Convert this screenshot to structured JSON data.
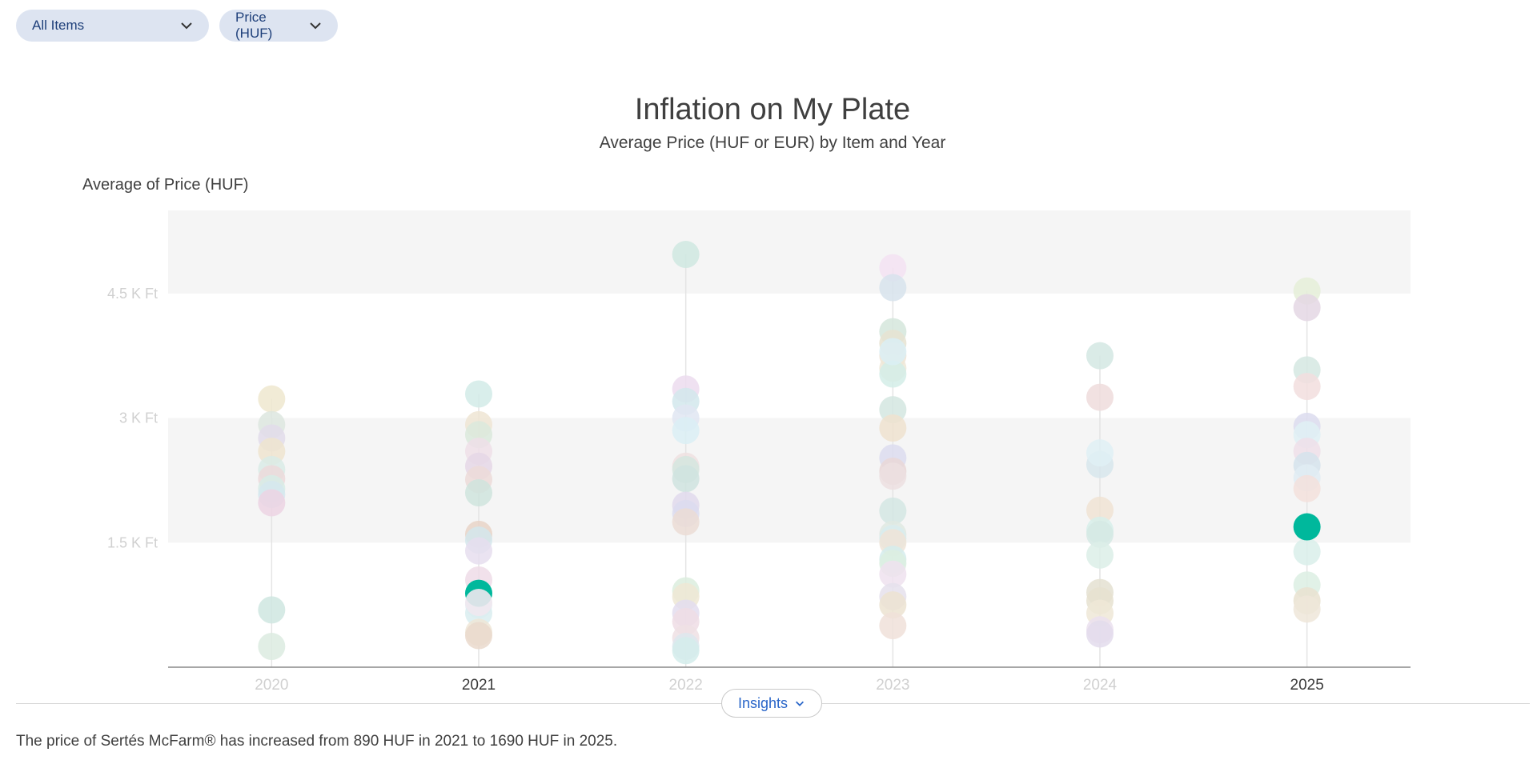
{
  "filters": {
    "items_label": "All Items",
    "metric_label": "Price (HUF)",
    "chevron_icon": "chevron-down-icon"
  },
  "insights": {
    "button_label": "Insights",
    "text": "The price of Sertés McFarm® has increased from 890 HUF in 2021 to 1690 HUF in 2025."
  },
  "chart_data": {
    "type": "scatter",
    "title": "Inflation on My Plate",
    "subtitle": "Average Price (HUF or EUR) by Item and Year",
    "ylabel": "Average of Price (HUF)",
    "xlabel": "",
    "ylim": [
      0,
      5500
    ],
    "yticks": [
      1500,
      3000,
      4500
    ],
    "ytick_labels": [
      "1.5 K Ft",
      "3 K Ft",
      "4.5 K Ft"
    ],
    "categories": [
      "2020",
      "2021",
      "2022",
      "2023",
      "2024",
      "2025"
    ],
    "highlighted_categories": [
      "2021",
      "2025"
    ],
    "grid": "alternating horizontal bands",
    "highlight": {
      "name": "Sertés McFarm®",
      "color": "#00b89c",
      "points": [
        {
          "x": "2021",
          "y": 890
        },
        {
          "x": "2025",
          "y": 1690
        }
      ]
    },
    "points": [
      {
        "x": "2020",
        "y": 3230,
        "c": "#efe8cf"
      },
      {
        "x": "2020",
        "y": 2920,
        "c": "#dde6df"
      },
      {
        "x": "2020",
        "y": 2760,
        "c": "#e2dcea"
      },
      {
        "x": "2020",
        "y": 2600,
        "c": "#efe4cf"
      },
      {
        "x": "2020",
        "y": 2380,
        "c": "#d9ebe6"
      },
      {
        "x": "2020",
        "y": 2270,
        "c": "#ecd9da"
      },
      {
        "x": "2020",
        "y": 2150,
        "c": "#d7ece6"
      },
      {
        "x": "2020",
        "y": 2080,
        "c": "#d5e8ee"
      },
      {
        "x": "2020",
        "y": 1980,
        "c": "#ecd3e3"
      },
      {
        "x": "2020",
        "y": 690,
        "c": "#cfe6e1"
      },
      {
        "x": "2020",
        "y": 250,
        "c": "#dcebe1"
      },
      {
        "x": "2021",
        "y": 3290,
        "c": "#d2ebe8"
      },
      {
        "x": "2021",
        "y": 2920,
        "c": "#efe5d3"
      },
      {
        "x": "2021",
        "y": 2800,
        "c": "#dae9dc"
      },
      {
        "x": "2021",
        "y": 2600,
        "c": "#efdfe7"
      },
      {
        "x": "2021",
        "y": 2420,
        "c": "#e5d7e6"
      },
      {
        "x": "2021",
        "y": 2260,
        "c": "#ecdbd8"
      },
      {
        "x": "2021",
        "y": 2100,
        "c": "#cfe4dd"
      },
      {
        "x": "2021",
        "y": 1600,
        "c": "#e8d3c7"
      },
      {
        "x": "2021",
        "y": 1530,
        "c": "#d4e6ec"
      },
      {
        "x": "2021",
        "y": 1400,
        "c": "#e6deef"
      },
      {
        "x": "2021",
        "y": 1050,
        "c": "#efdce7"
      },
      {
        "x": "2021",
        "y": 750,
        "c": "#e6eef5"
      },
      {
        "x": "2021",
        "y": 650,
        "c": "#d9edf0"
      },
      {
        "x": "2021",
        "y": 420,
        "c": "#efe6d7"
      },
      {
        "x": "2021",
        "y": 380,
        "c": "#ead9cd"
      },
      {
        "x": "2022",
        "y": 4970,
        "c": "#cfe7e0"
      },
      {
        "x": "2022",
        "y": 3350,
        "c": "#ecdcef"
      },
      {
        "x": "2022",
        "y": 3200,
        "c": "#d2e7ec"
      },
      {
        "x": "2022",
        "y": 3000,
        "c": "#e0e6f2"
      },
      {
        "x": "2022",
        "y": 2850,
        "c": "#dbeef5"
      },
      {
        "x": "2022",
        "y": 2420,
        "c": "#efe0e0"
      },
      {
        "x": "2022",
        "y": 2380,
        "c": "#d5e6df"
      },
      {
        "x": "2022",
        "y": 2270,
        "c": "#cfe3df"
      },
      {
        "x": "2022",
        "y": 1950,
        "c": "#e1d9ec"
      },
      {
        "x": "2022",
        "y": 1850,
        "c": "#dcdcef"
      },
      {
        "x": "2022",
        "y": 1750,
        "c": "#ebdcd5"
      },
      {
        "x": "2022",
        "y": 920,
        "c": "#dcedde"
      },
      {
        "x": "2022",
        "y": 850,
        "c": "#efe8d5"
      },
      {
        "x": "2022",
        "y": 650,
        "c": "#e3ddef"
      },
      {
        "x": "2022",
        "y": 550,
        "c": "#efdde5"
      },
      {
        "x": "2022",
        "y": 350,
        "c": "#efe1e4"
      },
      {
        "x": "2022",
        "y": 250,
        "c": "#dde8ed"
      },
      {
        "x": "2022",
        "y": 200,
        "c": "#d3eceb"
      },
      {
        "x": "2023",
        "y": 4810,
        "c": "#f3e2f2"
      },
      {
        "x": "2023",
        "y": 4570,
        "c": "#d7e3ec"
      },
      {
        "x": "2023",
        "y": 4040,
        "c": "#d5e6dc"
      },
      {
        "x": "2023",
        "y": 3900,
        "c": "#e6e3d1"
      },
      {
        "x": "2023",
        "y": 3750,
        "c": "#efe4d6"
      },
      {
        "x": "2023",
        "y": 3600,
        "c": "#efe8d7"
      },
      {
        "x": "2023",
        "y": 3530,
        "c": "#d4ede8"
      },
      {
        "x": "2023",
        "y": 3800,
        "c": "#dbeef5"
      },
      {
        "x": "2023",
        "y": 3100,
        "c": "#d3e6e1"
      },
      {
        "x": "2023",
        "y": 2880,
        "c": "#efe2cf"
      },
      {
        "x": "2023",
        "y": 2520,
        "c": "#dcdcef"
      },
      {
        "x": "2023",
        "y": 2360,
        "c": "#e9d7d7"
      },
      {
        "x": "2023",
        "y": 2300,
        "c": "#ecdfe0"
      },
      {
        "x": "2023",
        "y": 1880,
        "c": "#d3e6e3"
      },
      {
        "x": "2023",
        "y": 1600,
        "c": "#dfe9e2"
      },
      {
        "x": "2023",
        "y": 1550,
        "c": "#d8ecee"
      },
      {
        "x": "2023",
        "y": 1500,
        "c": "#efe4d7"
      },
      {
        "x": "2023",
        "y": 1300,
        "c": "#d5ecec"
      },
      {
        "x": "2023",
        "y": 1250,
        "c": "#dceee0"
      },
      {
        "x": "2023",
        "y": 1120,
        "c": "#efe2ef"
      },
      {
        "x": "2023",
        "y": 850,
        "c": "#e5e0ec"
      },
      {
        "x": "2023",
        "y": 750,
        "c": "#ece3d1"
      },
      {
        "x": "2023",
        "y": 500,
        "c": "#f0e1d9"
      },
      {
        "x": "2024",
        "y": 3750,
        "c": "#d3e7e3"
      },
      {
        "x": "2024",
        "y": 3250,
        "c": "#efdcdc"
      },
      {
        "x": "2024",
        "y": 2440,
        "c": "#d7e6ec"
      },
      {
        "x": "2024",
        "y": 2580,
        "c": "#dff0f5"
      },
      {
        "x": "2024",
        "y": 1890,
        "c": "#f0e3d3"
      },
      {
        "x": "2024",
        "y": 1650,
        "c": "#d7eeea"
      },
      {
        "x": "2024",
        "y": 1600,
        "c": "#d5e9e4"
      },
      {
        "x": "2024",
        "y": 1350,
        "c": "#dceee8"
      },
      {
        "x": "2024",
        "y": 900,
        "c": "#e4e1d1"
      },
      {
        "x": "2024",
        "y": 800,
        "c": "#e6e2d0"
      },
      {
        "x": "2024",
        "y": 650,
        "c": "#efe8d7"
      },
      {
        "x": "2024",
        "y": 450,
        "c": "#ebe1ef"
      },
      {
        "x": "2024",
        "y": 400,
        "c": "#e3dcec"
      },
      {
        "x": "2025",
        "y": 4530,
        "c": "#e5efd8"
      },
      {
        "x": "2025",
        "y": 4330,
        "c": "#e4d7e4"
      },
      {
        "x": "2025",
        "y": 3580,
        "c": "#d5e8e2"
      },
      {
        "x": "2025",
        "y": 3380,
        "c": "#f2dede"
      },
      {
        "x": "2025",
        "y": 2900,
        "c": "#dcdcef"
      },
      {
        "x": "2025",
        "y": 2800,
        "c": "#dff0f5"
      },
      {
        "x": "2025",
        "y": 2600,
        "c": "#efdfe9"
      },
      {
        "x": "2025",
        "y": 2430,
        "c": "#d5e3ec"
      },
      {
        "x": "2025",
        "y": 2280,
        "c": "#e0ecf3"
      },
      {
        "x": "2025",
        "y": 2150,
        "c": "#f3e0dc"
      },
      {
        "x": "2025",
        "y": 1390,
        "c": "#d9eeea"
      },
      {
        "x": "2025",
        "y": 990,
        "c": "#dceee3"
      },
      {
        "x": "2025",
        "y": 800,
        "c": "#e9e2d0"
      },
      {
        "x": "2025",
        "y": 700,
        "c": "#efe6d9"
      }
    ]
  }
}
